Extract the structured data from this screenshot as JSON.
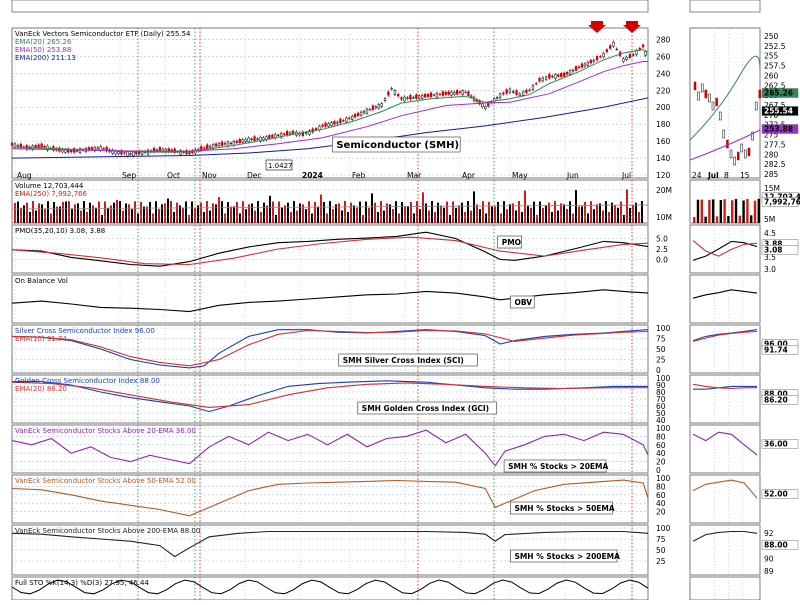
{
  "chart_data": {
    "type": "line",
    "title": "VanEck Vectors Semiconductor ETF (Daily) 255.54",
    "x_ticks": [
      "Aug",
      "Sep",
      "Oct",
      "Nov",
      "Dec",
      "2024",
      "Feb",
      "Mar",
      "Apr",
      "May",
      "Jun",
      "Jul"
    ],
    "zoom_x_ticks": [
      "24",
      "Jul",
      "8",
      "15"
    ],
    "annotation_box": "1.0427",
    "colors": {
      "price_up": "#000000",
      "price_down": "#cc0000",
      "ema20": "#2e8b57",
      "ema50": "#9b30c8",
      "ema200": "#1a1a8c",
      "volume_up": "#000000",
      "volume_down": "#d11a1a",
      "signal_line": "#cc3333",
      "breadth20": "#8e24aa",
      "breadth50": "#b35a1f",
      "breadth200": "#222222",
      "arrow": "#d50000",
      "grid": "#a8c0e0",
      "vline_red": "#e53935",
      "vline_green": "#43a047"
    },
    "panels": [
      {
        "id": "price",
        "legend": [
          "VanEck Vectors Semiconductor ETF (Daily) 255.54",
          "EMA(20) 265.26",
          "EMA(50) 253.88",
          "EMA(200) 211.13"
        ],
        "label": "Semiconductor (SMH)",
        "ylim": [
          120,
          290
        ],
        "y_ticks": [
          120,
          140,
          160,
          180,
          200,
          220,
          240,
          260,
          280
        ],
        "zoom_y_ticks": [
          250.0,
          252.5,
          255.0,
          257.5,
          260.0,
          262.5,
          265.0,
          267.5,
          270.0,
          272.5,
          275.0,
          277.5,
          280.0,
          282.5,
          285.0
        ],
        "last_values": [
          "265.26",
          "255.54",
          "253.88"
        ],
        "series": [
          {
            "name": "Close",
            "x": [
              0,
              15,
              30,
              45,
              60,
              75,
              90,
              105,
              120,
              135,
              150,
              165,
              180,
              195,
              210,
              225,
              240,
              255,
              270,
              285,
              295,
              305,
              315,
              330,
              345,
              360,
              375,
              385,
              395,
              410,
              425,
              440,
              460,
              480,
              495,
              505,
              515,
              525,
              535,
              545,
              560,
              575,
              590,
              600,
              610,
              620,
              630,
              640,
              645
            ],
            "y": [
              156,
              152,
              154,
              150,
              148,
              150,
              152,
              147,
              145,
              147,
              150,
              148,
              146,
              152,
              156,
              158,
              162,
              163,
              167,
              170,
              168,
              172,
              178,
              182,
              188,
              196,
              203,
              222,
              210,
              212,
              214,
              216,
              218,
              200,
              214,
              220,
              215,
              220,
              232,
              236,
              238,
              247,
              255,
              262,
              275,
              256,
              262,
              272,
              256
            ]
          },
          {
            "name": "EMA(20)",
            "x": [
              0,
              45,
              90,
              135,
              180,
              195,
              225,
              255,
              285,
              315,
              345,
              375,
              395,
              425,
              460,
              480,
              505,
              525,
              545,
              575,
              600,
              620,
              640,
              645
            ],
            "y": [
              153,
              151,
              149,
              147,
              147,
              150,
              155,
              161,
              168,
              174,
              183,
              195,
              205,
              210,
              213,
              206,
              210,
              215,
              228,
              242,
              256,
              264,
              268,
              265
            ]
          },
          {
            "name": "EMA(50)",
            "x": [
              0,
              45,
              90,
              135,
              180,
              225,
              270,
              315,
              360,
              395,
              440,
              480,
              505,
              545,
              575,
              600,
              620,
              640,
              645
            ],
            "y": [
              151,
              150,
              149,
              148,
              148,
              151,
              157,
              164,
              177,
              190,
              202,
              205,
              206,
              216,
              230,
              242,
              249,
              254,
              254
            ]
          },
          {
            "name": "EMA(200)",
            "x": [
              0,
              60,
              120,
              180,
              240,
              300,
              360,
              420,
              480,
              540,
              600,
              645
            ],
            "y": [
              140,
              141,
              142,
              143,
              146,
              151,
              160,
              170,
              178,
              188,
              200,
              211
            ]
          }
        ]
      },
      {
        "id": "volume",
        "legend": [
          "Volume 12,703,444",
          "EMA(250) 7,992,766"
        ],
        "y_ticks": [
          "20M",
          "10M"
        ],
        "zoom_y_ticks": [
          "15M",
          "10M",
          "5M"
        ],
        "last_values": [
          "12,703,444",
          "7,992,766"
        ]
      },
      {
        "id": "pmo",
        "legend": [
          "PMO(35,20,10) 3.08, 3.88"
        ],
        "label": "PMO",
        "ylim": [
          -2.5,
          7.5
        ],
        "y_ticks": [
          "5.0",
          "2.5",
          "0.0"
        ],
        "zoom_y_ticks": [
          "4.5",
          "4.0",
          "3.5",
          "3.0"
        ],
        "last_values": [
          "3.88",
          "3.08"
        ],
        "series": [
          {
            "name": "PMO",
            "x": [
              0,
              30,
              60,
              90,
              120,
              150,
              180,
              210,
              240,
              270,
              300,
              330,
              360,
              390,
              420,
              450,
              480,
              495,
              510,
              540,
              570,
              600,
              620,
              645
            ],
            "y": [
              2.3,
              2.0,
              0.5,
              -0.3,
              -1.2,
              -1.6,
              -0.5,
              1.5,
              3.0,
              4.0,
              4.3,
              4.8,
              5.1,
              5.5,
              6.5,
              5.0,
              1.8,
              0.0,
              -0.2,
              0.8,
              2.5,
              4.3,
              4.0,
              3.08
            ]
          },
          {
            "name": "Signal",
            "x": [
              0,
              45,
              90,
              135,
              180,
              225,
              270,
              315,
              360,
              405,
              450,
              495,
              540,
              585,
              620,
              645
            ],
            "y": [
              2.3,
              1.5,
              0.4,
              -1.0,
              -1.2,
              0.3,
              2.5,
              3.8,
              4.8,
              5.3,
              4.5,
              2.0,
              0.8,
              2.4,
              3.6,
              3.88
            ]
          }
        ]
      },
      {
        "id": "obv",
        "legend": [
          "On Balance Vol"
        ],
        "label": "OBV",
        "series": [
          {
            "name": "OBV",
            "x": [
              0,
              30,
              60,
              90,
              120,
              150,
              180,
              210,
              240,
              270,
              300,
              330,
              360,
              390,
              420,
              450,
              480,
              495,
              510,
              540,
              570,
              600,
              620,
              645
            ],
            "y": [
              40,
              45,
              38,
              30,
              28,
              25,
              20,
              35,
              42,
              45,
              50,
              55,
              60,
              62,
              68,
              64,
              55,
              48,
              52,
              60,
              65,
              72,
              68,
              64
            ]
          }
        ]
      },
      {
        "id": "sci",
        "legend": [
          "Silver Cross Semiconductor Index 96.00",
          "EMA(10) 91.74"
        ],
        "label": "SMH Silver Cross Index (SCI)",
        "ylim": [
          0,
          100
        ],
        "y_ticks": [
          "100",
          "75",
          "50",
          "25",
          "0"
        ],
        "last_values": [
          "96.00",
          "91.74"
        ],
        "series": [
          {
            "name": "SCI",
            "x": [
              0,
              30,
              60,
              90,
              120,
              150,
              180,
              195,
              210,
              240,
              270,
              300,
              330,
              360,
              390,
              420,
              450,
              480,
              495,
              510,
              540,
              570,
              600,
              620,
              645
            ],
            "y": [
              80,
              78,
              70,
              50,
              25,
              12,
              5,
              10,
              40,
              80,
              96,
              96,
              90,
              88,
              92,
              96,
              92,
              82,
              62,
              70,
              80,
              85,
              88,
              92,
              96
            ]
          },
          {
            "name": "EMA(10)",
            "x": [
              0,
              30,
              60,
              90,
              120,
              150,
              180,
              210,
              240,
              270,
              300,
              330,
              360,
              390,
              420,
              450,
              480,
              510,
              540,
              570,
              600,
              620,
              645
            ],
            "y": [
              80,
              78,
              72,
              55,
              32,
              18,
              10,
              25,
              60,
              85,
              94,
              92,
              89,
              90,
              94,
              93,
              86,
              68,
              76,
              83,
              87,
              90,
              91.74
            ]
          }
        ]
      },
      {
        "id": "gci",
        "legend": [
          "Golden Cross Semiconductor Index 88.00",
          "EMA(20) 86.20"
        ],
        "label": "SMH Golden Cross Index (GCI)",
        "ylim": [
          40,
          100
        ],
        "y_ticks": [
          "100",
          "90",
          "80",
          "70",
          "60",
          "50",
          "40"
        ],
        "last_values": [
          "88.00",
          "86.20"
        ],
        "series": [
          {
            "name": "GCI",
            "x": [
              0,
              30,
              60,
              90,
              120,
              150,
              180,
              200,
              220,
              250,
              280,
              310,
              340,
              380,
              420,
              450,
              480,
              510,
              540,
              580,
              610,
              630,
              645
            ],
            "y": [
              95,
              95,
              90,
              80,
              72,
              66,
              60,
              52,
              60,
              75,
              88,
              92,
              94,
              96,
              94,
              90,
              86,
              84,
              84,
              86,
              88,
              88,
              88
            ]
          },
          {
            "name": "EMA(20)",
            "x": [
              0,
              40,
              80,
              120,
              160,
              200,
              240,
              280,
              320,
              360,
              400,
              440,
              480,
              520,
              560,
              600,
              645
            ],
            "y": [
              94,
              92,
              86,
              76,
              66,
              58,
              62,
              76,
              86,
              91,
              93,
              91,
              88,
              86,
              85,
              86,
              86.2
            ]
          }
        ]
      },
      {
        "id": "b20",
        "legend": [
          "VanEck Semiconductor Stocks Above 20-EMA 36.00"
        ],
        "label": "SMH % Stocks > 20EMA",
        "ylim": [
          0,
          100
        ],
        "y_ticks": [
          "100",
          "80",
          "60",
          "40",
          "20",
          "0"
        ],
        "last_values": [
          "36.00"
        ],
        "series": [
          {
            "name": "% > 20EMA",
            "x": [
              0,
              20,
              40,
              60,
              80,
              100,
              120,
              140,
              160,
              180,
              200,
              220,
              240,
              260,
              280,
              300,
              320,
              340,
              360,
              380,
              400,
              420,
              440,
              460,
              480,
              490,
              500,
              520,
              540,
              560,
              580,
              600,
              620,
              640,
              645
            ],
            "y": [
              70,
              60,
              75,
              40,
              55,
              30,
              20,
              35,
              25,
              15,
              55,
              80,
              60,
              90,
              70,
              85,
              60,
              85,
              55,
              75,
              80,
              95,
              65,
              85,
              40,
              10,
              45,
              60,
              80,
              85,
              70,
              90,
              85,
              60,
              36
            ]
          }
        ]
      },
      {
        "id": "b50",
        "legend": [
          "VanEck Semiconductor Stocks Above 50-EMA 52.00"
        ],
        "label": "SMH % Stocks > 50EMA",
        "ylim": [
          0,
          100
        ],
        "y_ticks": [
          "100",
          "80",
          "60",
          "40",
          "20"
        ],
        "last_values": [
          "52.00"
        ],
        "series": [
          {
            "name": "% > 50EMA",
            "x": [
              0,
              30,
              60,
              90,
              120,
              150,
              180,
              210,
              240,
              270,
              300,
              330,
              360,
              390,
              420,
              450,
              480,
              490,
              500,
              530,
              560,
              590,
              620,
              640,
              645
            ],
            "y": [
              75,
              72,
              60,
              45,
              35,
              25,
              10,
              40,
              70,
              85,
              88,
              90,
              92,
              94,
              92,
              90,
              75,
              30,
              40,
              70,
              85,
              90,
              95,
              88,
              52
            ]
          }
        ]
      },
      {
        "id": "b200",
        "legend": [
          "VanEck Semiconductor Stocks Above 200-EMA 88.00"
        ],
        "label": "SMH % Stocks > 200EMA",
        "ylim": [
          0,
          100
        ],
        "y_ticks": [
          "100",
          "75",
          "50",
          "25"
        ],
        "zoom_y_ticks": [
          "92",
          "91",
          "90",
          "89"
        ],
        "last_values": [
          "88.00"
        ],
        "series": [
          {
            "name": "% > 200EMA",
            "x": [
              0,
              30,
              60,
              90,
              120,
              150,
              165,
              180,
              200,
              230,
              260,
              300,
              340,
              380,
              420,
              460,
              480,
              490,
              500,
              540,
              580,
              620,
              645
            ],
            "y": [
              88,
              86,
              80,
              75,
              70,
              60,
              35,
              55,
              80,
              88,
              92,
              92,
              92,
              92,
              92,
              90,
              86,
              70,
              85,
              90,
              92,
              92,
              88
            ]
          }
        ]
      },
      {
        "id": "sto",
        "legend": [
          "Full STO %K(14,3) %D(3) 27.95, 46.44"
        ],
        "last_values": [
          "27.95",
          "46.44"
        ]
      }
    ]
  }
}
